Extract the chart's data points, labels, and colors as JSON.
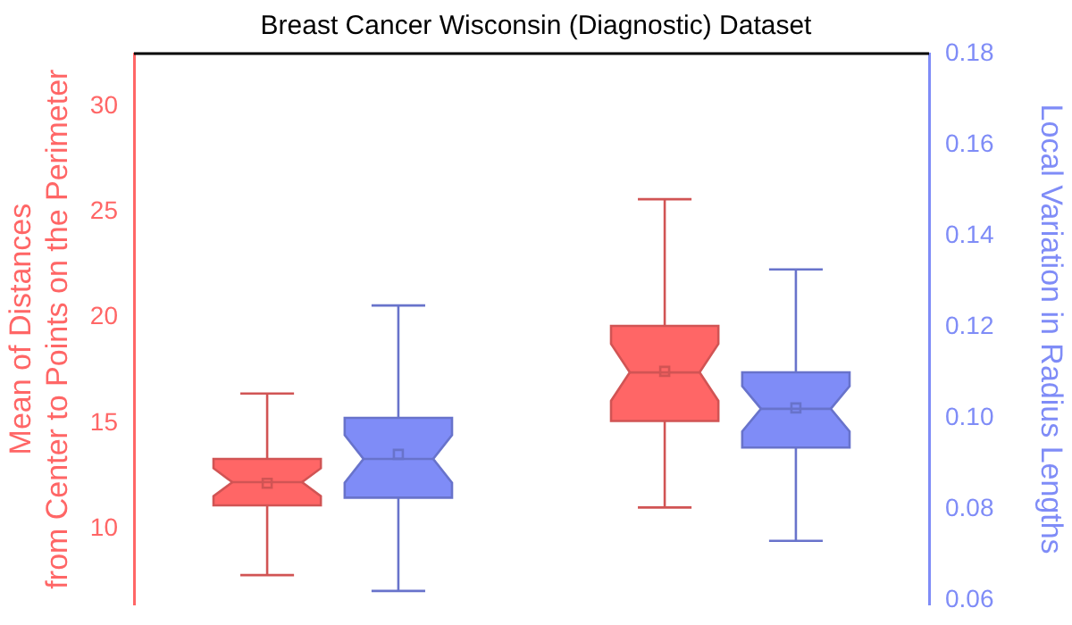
{
  "chart_data": {
    "type": "box",
    "title": "Breast Cancer Wisconsin (Diagnostic) Dataset",
    "ylabel": "Mean of Distances\nfrom Center to Points on the Perimeter",
    "y2label": "Local Variation in Radius Lengths",
    "categories": [
      null,
      null
    ],
    "series": [
      {
        "color": "#ff6666",
        "axis": "y",
        "boxes": [
          {
            "low": 7.8,
            "q1": 11.1,
            "median": 12.2,
            "q3": 13.3,
            "high": 16.4,
            "mean": 12.15
          },
          {
            "low": 11.0,
            "q1": 15.1,
            "median": 17.4,
            "q3": 19.6,
            "high": 25.6,
            "mean": 17.45
          }
        ]
      },
      {
        "color": "#7f8cf7",
        "axis": "y2",
        "boxes": [
          {
            "low": 0.062,
            "q1": 0.0825,
            "median": 0.091,
            "q3": 0.1,
            "high": 0.1247,
            "mean": 0.092
          },
          {
            "low": 0.073,
            "q1": 0.0935,
            "median": 0.102,
            "q3": 0.11,
            "high": 0.1326,
            "mean": 0.1022
          }
        ]
      }
    ],
    "ylim": [
      6.4,
      32.5
    ],
    "yticks": [
      10,
      15,
      20,
      25,
      30
    ],
    "y2lim": [
      0.059,
      0.18
    ],
    "y2ticks": [
      0.06,
      0.08,
      {
        "value": 0.1,
        "label": "0.10"
      },
      0.12,
      0.14,
      0.16,
      0.18
    ],
    "grid": false,
    "legend": false
  }
}
